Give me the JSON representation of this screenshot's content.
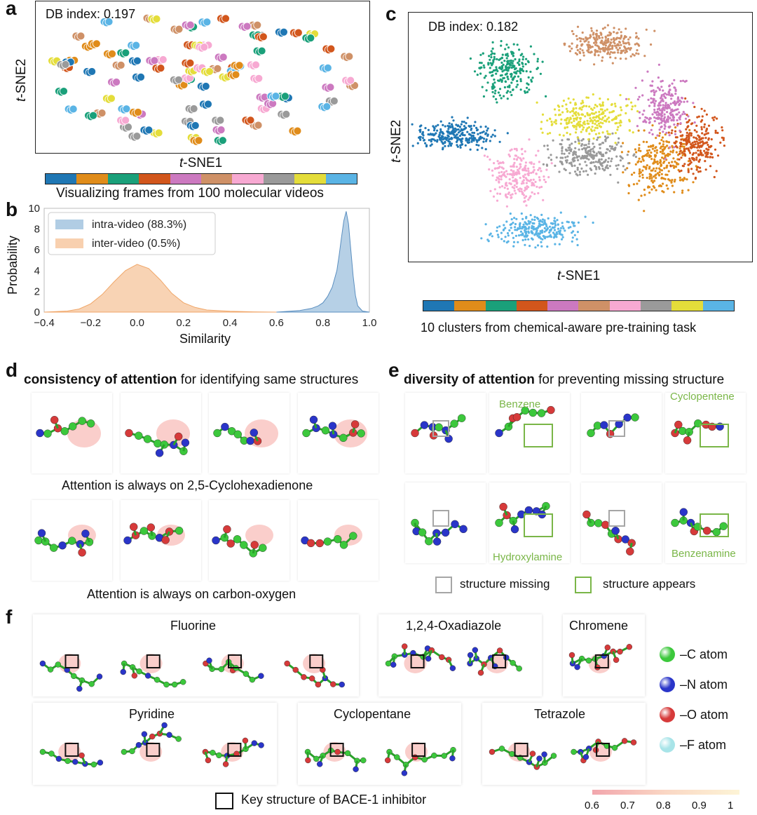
{
  "colors": {
    "palette": [
      "#1f77b4",
      "#e08c1a",
      "#1aa07a",
      "#d2561c",
      "#cc79c0",
      "#cf9167",
      "#f7a9d2",
      "#9a9a9a",
      "#e4dd3a",
      "#5ab4e5"
    ],
    "kde_blue": "#9ec0dd",
    "kde_orange": "#f6c49b",
    "carbon": "#3cc83c",
    "nitrogen": "#2a35c9",
    "oxygen": "#d63a3a",
    "fluorine": "#a8e4e8",
    "missing": "#a6a6a6",
    "appears": "#7ab648"
  },
  "panel_a": {
    "label": "a",
    "db_index": "DB index: 0.197",
    "xlabel_italic": "t",
    "xlabel_rest": "-SNE1",
    "ylabel_italic": "t",
    "ylabel_rest": "-SNE2",
    "caption": "Visualizing frames from 100 molecular videos"
  },
  "panel_b": {
    "label": "b",
    "xlabel": "Similarity",
    "ylabel": "Probability"
  },
  "panel_c": {
    "label": "c",
    "db_index": "DB index: 0.182",
    "xlabel_italic": "t",
    "xlabel_rest": "-SNE1",
    "ylabel_italic": "t",
    "ylabel_rest": "-SNE2",
    "caption": "10 clusters from chemical-aware pre-training task"
  },
  "panel_d": {
    "label": "d",
    "title_bold": "consistency of attention",
    "title_rest": " for identifying same structures",
    "caption1": "Attention is always on 2,5-Cyclohexadienone",
    "caption2": "Attention is always on carbon-oxygen"
  },
  "panel_e": {
    "label": "e",
    "title_bold": "diversity of attention",
    "title_rest": " for preventing missing structure",
    "names": [
      "Benzene",
      "Cyclopentene",
      "Hydroxylamine",
      "Benzenamine"
    ],
    "legend_missing": "structure missing",
    "legend_appears": "structure appears"
  },
  "panel_f": {
    "label": "f",
    "groups": [
      "Fluorine",
      "1,2,4-Oxadiazole",
      "Chromene",
      "Pyridine",
      "Cyclopentane",
      "Tetrazole"
    ],
    "atom_legend": [
      "–C atom",
      "–N atom",
      "–O atom",
      "–F atom"
    ],
    "key_structure": "Key structure of BACE-1 inhibitor",
    "colorbar_ticks": [
      "0.6",
      "0.7",
      "0.8",
      "0.9",
      "1"
    ]
  },
  "chart_data": {
    "type": "area",
    "xlabel": "Similarity",
    "ylabel": "Probability",
    "xlim": [
      -0.4,
      1.0
    ],
    "ylim": [
      0,
      10
    ],
    "xticks": [
      "−0.4",
      "−0.2",
      "0.0",
      "0.2",
      "0.4",
      "0.6",
      "0.8",
      "1.0"
    ],
    "yticks": [
      "0",
      "2",
      "4",
      "6",
      "8",
      "10"
    ],
    "grid": false,
    "legend_position": "top-left",
    "series": [
      {
        "name": "intra-video (88.3%)",
        "color": "#9ec0dd",
        "x": [
          0.6,
          0.7,
          0.75,
          0.78,
          0.8,
          0.82,
          0.84,
          0.86,
          0.87,
          0.88,
          0.89,
          0.9,
          0.91,
          0.92,
          0.93,
          0.94,
          0.95,
          0.97,
          1.0
        ],
        "y": [
          0.0,
          0.15,
          0.35,
          0.6,
          0.9,
          1.5,
          2.4,
          4.0,
          5.5,
          7.2,
          8.8,
          9.7,
          8.5,
          6.0,
          3.5,
          1.6,
          0.6,
          0.1,
          0.0
        ]
      },
      {
        "name": "inter-video (0.5%)",
        "color": "#f6c49b",
        "x": [
          -0.4,
          -0.3,
          -0.25,
          -0.2,
          -0.15,
          -0.1,
          -0.05,
          0.0,
          0.05,
          0.1,
          0.15,
          0.2,
          0.25,
          0.3,
          0.4,
          0.5,
          0.6
        ],
        "y": [
          0.0,
          0.1,
          0.3,
          0.8,
          1.7,
          2.9,
          4.0,
          4.6,
          4.2,
          3.1,
          1.8,
          0.9,
          0.45,
          0.2,
          0.08,
          0.03,
          0.0
        ]
      }
    ]
  }
}
